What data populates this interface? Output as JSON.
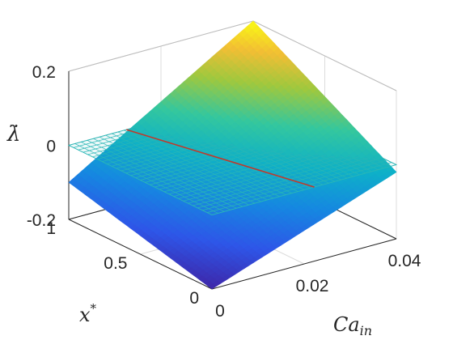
{
  "chart_data": {
    "type": "surface3d",
    "title": "",
    "xlabel": "Ca_in",
    "ylabel": "x*",
    "zlabel": "λ̇",
    "xlim": [
      0,
      0.04
    ],
    "ylim": [
      0,
      1
    ],
    "zlim": [
      -0.2,
      0.2
    ],
    "x_ticks": [
      "0",
      "0.02",
      "0.04"
    ],
    "y_ticks": [
      "0",
      "0.5",
      "1"
    ],
    "z_ticks": [
      "-0.2",
      "0",
      "0.2"
    ],
    "grid": true,
    "surface": {
      "corners": [
        {
          "x": 0,
          "y": 0,
          "z": -0.2
        },
        {
          "x": 0,
          "y": 1,
          "z": -0.1
        },
        {
          "x": 0.04,
          "y": 1,
          "z": 0.2
        },
        {
          "x": 0.04,
          "y": 0,
          "z": -0.02
        }
      ],
      "colormap": "parula"
    },
    "zero_plane": {
      "z": 0,
      "color": "#2ab7b7",
      "style": "mesh"
    },
    "zero_crossing_line": {
      "color": "#c0392b",
      "points": [
        {
          "x": 0.0125,
          "y": 1,
          "z": 0
        },
        {
          "x": 0.0222,
          "y": 0,
          "z": 0
        }
      ]
    }
  },
  "labels": {
    "xlabel_main": "Ca",
    "xlabel_sub": "in",
    "ylabel_main": "x",
    "ylabel_sup": "*",
    "zlabel": "λ̇"
  },
  "colors": {
    "axis": "#262626",
    "grid": "#dcdcdc",
    "mesh": "#2ab7b7",
    "crossing": "#c0392b"
  }
}
